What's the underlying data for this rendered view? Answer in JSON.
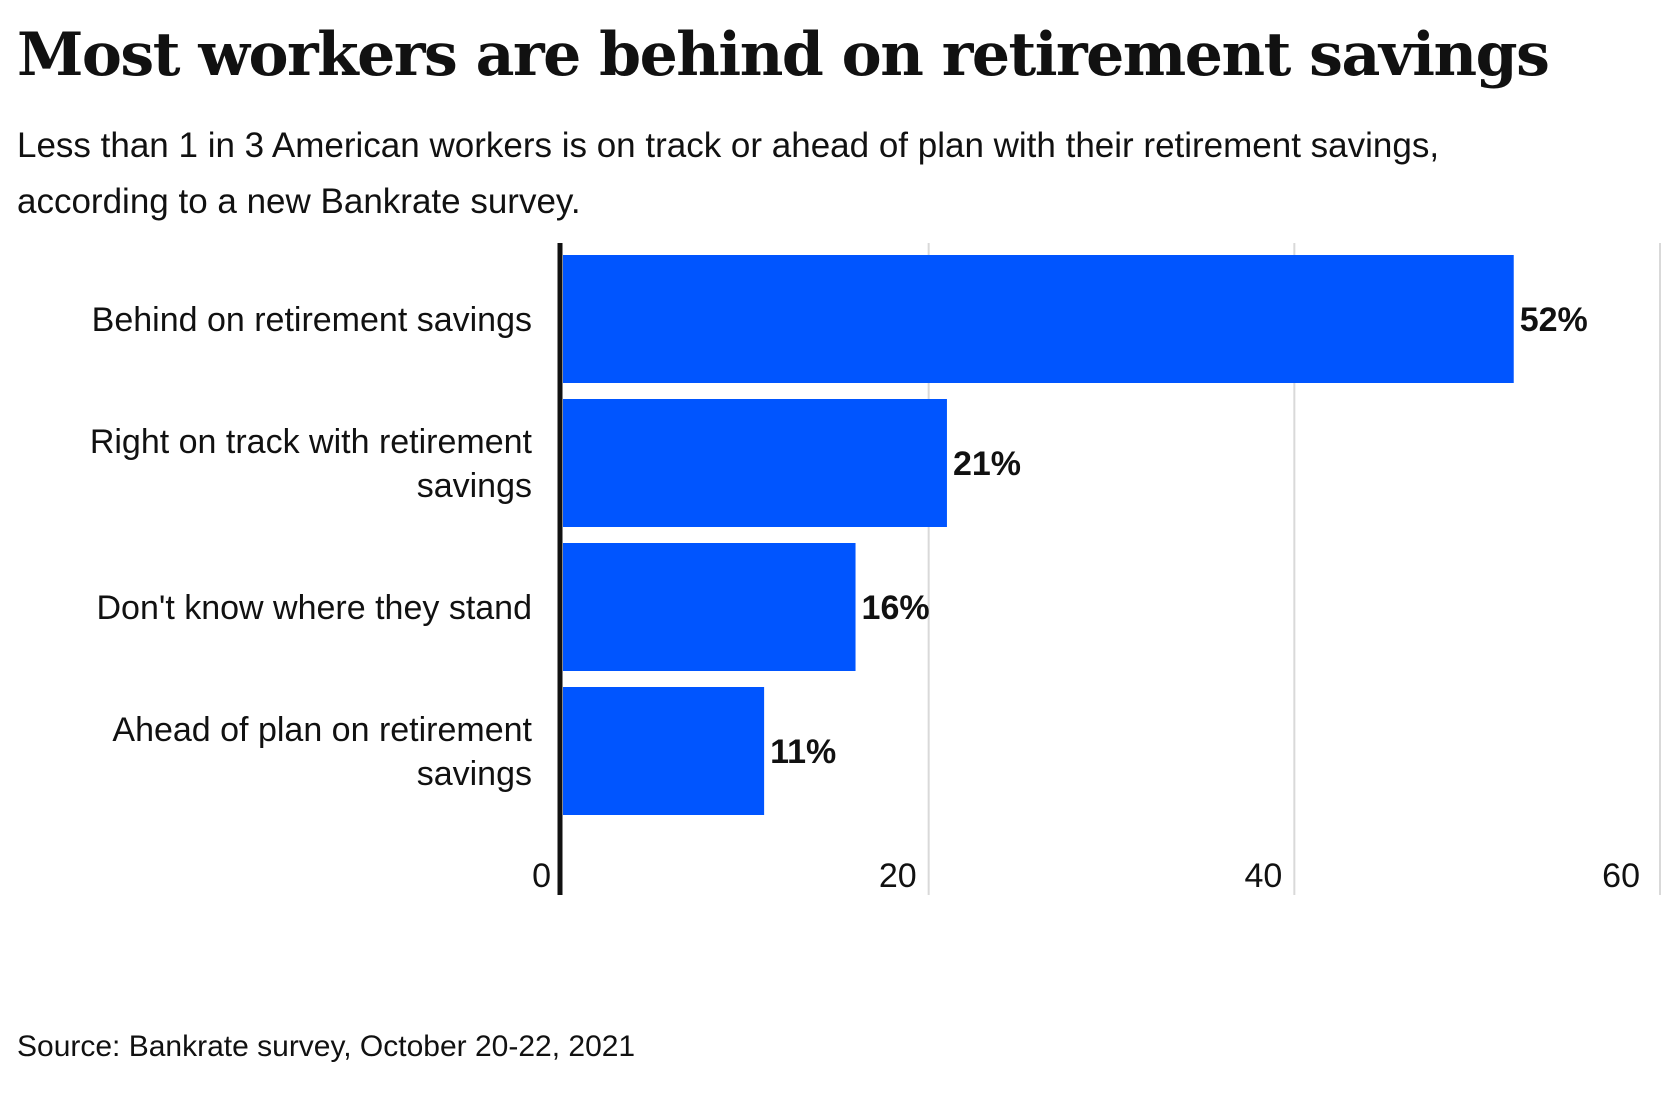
{
  "title": "Most workers are behind on retirement savings",
  "subtitle": "Less than 1 in 3 American workers is on track or ahead of plan with their retirement savings, according to a new Bankrate survey.",
  "source": "Source: Bankrate survey, October 20-22, 2021",
  "colors": {
    "bar": "#0055FF",
    "gridline": "#D9D9D9",
    "axis": "#111111"
  },
  "chart_data": {
    "type": "bar",
    "orientation": "horizontal",
    "title": "Most workers are behind on retirement savings",
    "xlabel": "",
    "ylabel": "",
    "xlim": [
      0,
      60
    ],
    "ticks": [
      0,
      20,
      40,
      60
    ],
    "grid": true,
    "categories": [
      [
        "Behind on retirement savings"
      ],
      [
        "Right on track with retirement",
        "savings"
      ],
      [
        "Don't know where they stand"
      ],
      [
        "Ahead of plan on retirement",
        "savings"
      ]
    ],
    "values": [
      52,
      21,
      16,
      11
    ],
    "value_labels": [
      "52%",
      "21%",
      "16%",
      "11%"
    ]
  }
}
